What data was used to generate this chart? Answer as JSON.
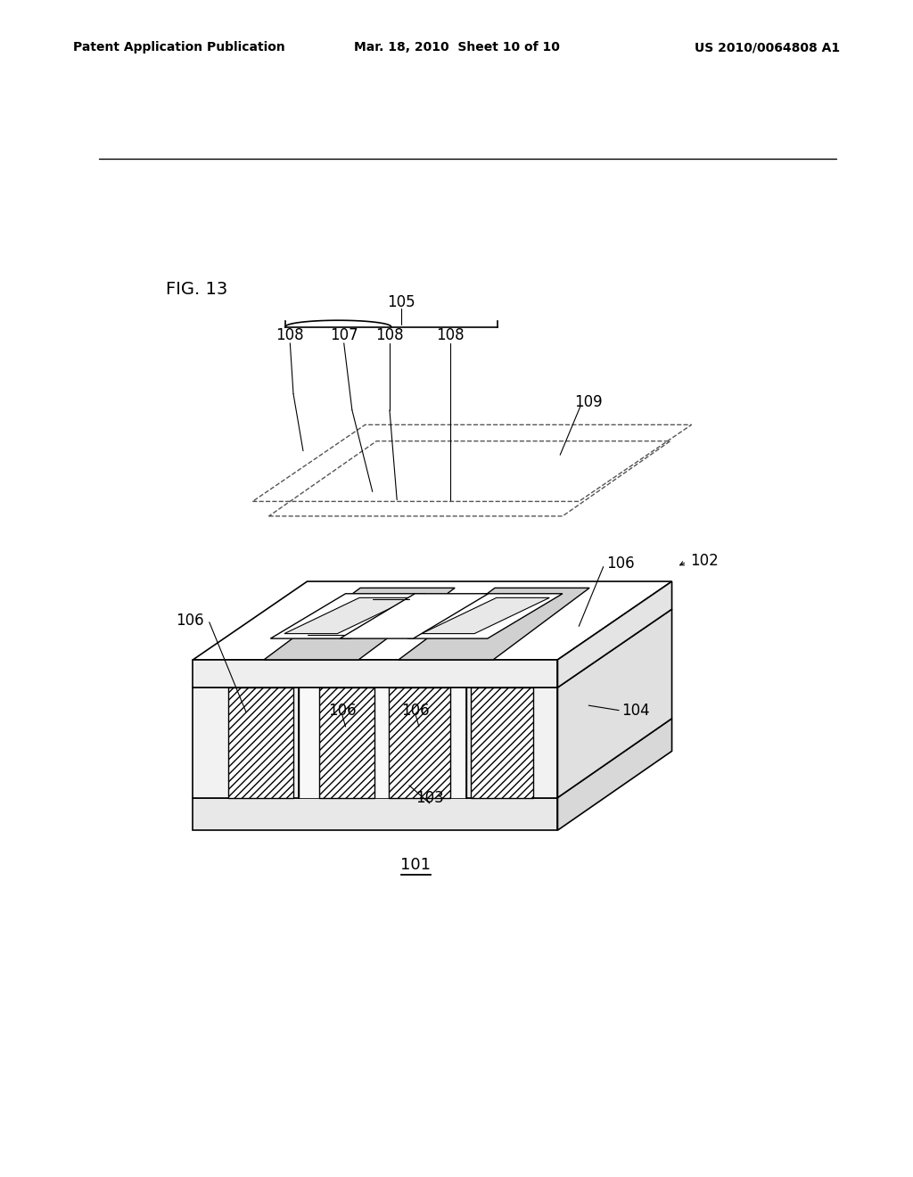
{
  "header_left": "Patent Application Publication",
  "header_center": "Mar. 18, 2010  Sheet 10 of 10",
  "header_right": "US 2010/0064808 A1",
  "fig_label": "FIG. 13",
  "background_color": "#ffffff",
  "line_color": "#000000",
  "dashed_color": "#555555",
  "label_fontsize": 12,
  "header_fontsize": 10,
  "fig_fontsize": 14
}
